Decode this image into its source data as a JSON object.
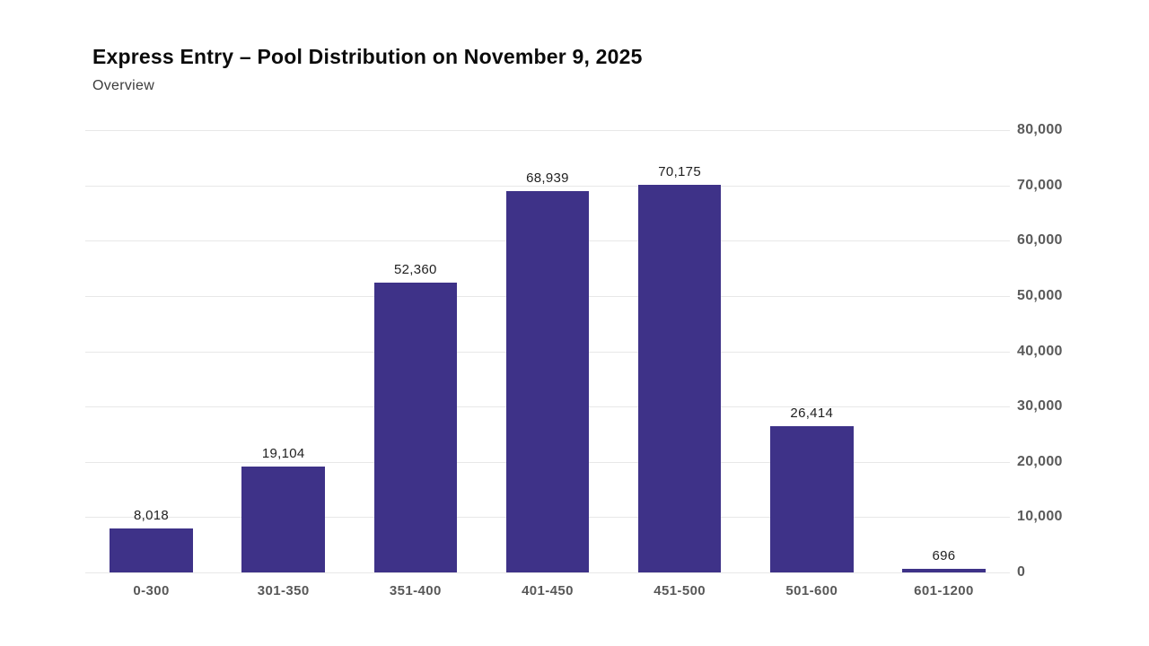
{
  "chart_data": {
    "type": "bar",
    "title": "Express Entry – Pool Distribution on November 9, 2025",
    "subtitle": "Overview",
    "categories": [
      "0-300",
      "301-350",
      "351-400",
      "401-450",
      "451-500",
      "501-600",
      "601-1200"
    ],
    "values": [
      8018,
      19104,
      52360,
      68939,
      70175,
      26414,
      696
    ],
    "value_labels": [
      "8,018",
      "19,104",
      "52,360",
      "68,939",
      "70,175",
      "26,414",
      "696"
    ],
    "xlabel": "",
    "ylabel": "",
    "ylim": [
      0,
      80000
    ],
    "yticks": [
      {
        "value": 0,
        "label": "0"
      },
      {
        "value": 10000,
        "label": "10,000"
      },
      {
        "value": 20000,
        "label": "20,000"
      },
      {
        "value": 30000,
        "label": "30,000"
      },
      {
        "value": 40000,
        "label": "40,000"
      },
      {
        "value": 50000,
        "label": "50,000"
      },
      {
        "value": 60000,
        "label": "60,000"
      },
      {
        "value": 70000,
        "label": "70,000"
      },
      {
        "value": 80000,
        "label": "80,000"
      }
    ],
    "y_axis_side": "right",
    "grid": "horizontal",
    "legend": "none",
    "bar_color": "#3e3288",
    "gridline_color": "#e8e8e8"
  }
}
